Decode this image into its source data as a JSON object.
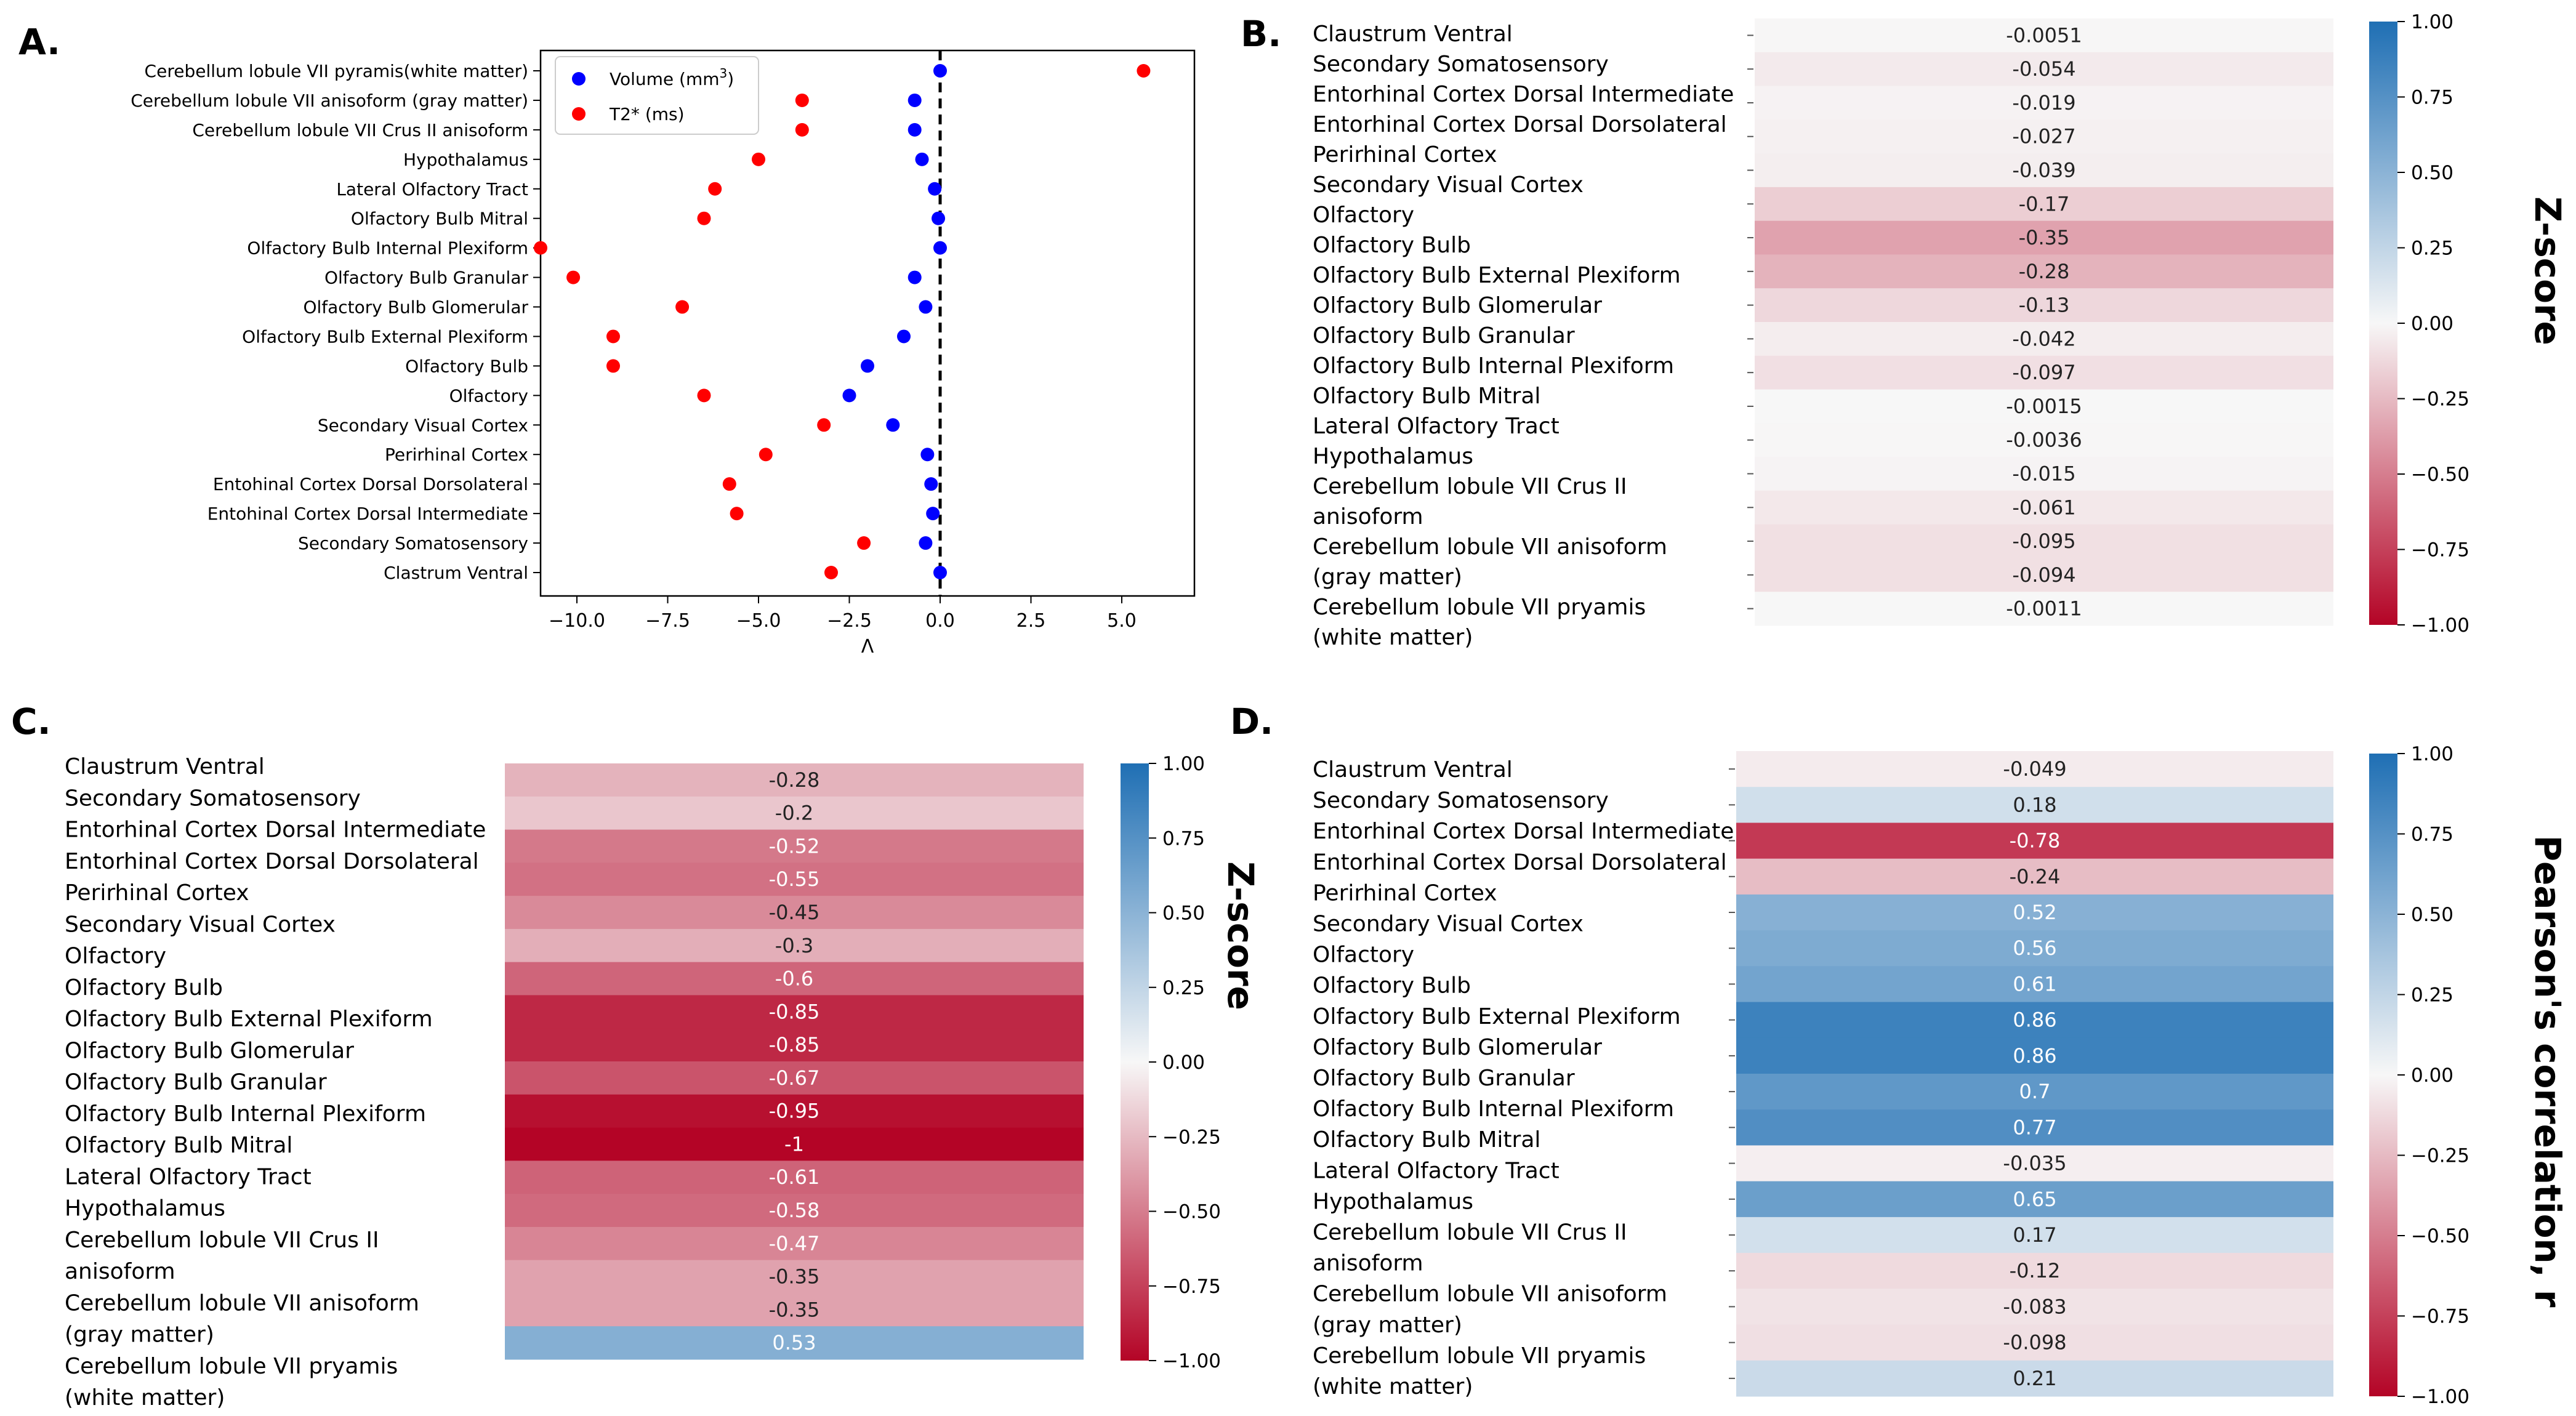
{
  "figure": {
    "type": "multi-panel",
    "panel_count": 4
  },
  "colors": {
    "volume": "#0000ff",
    "t2star": "#ff0000",
    "cmap_neg": "#b40426",
    "cmap_mid": "#f7f7f7",
    "cmap_pos": "#1f6fb4",
    "zero_line": "#000000"
  },
  "chart_data": [
    {
      "panel": "A.",
      "type": "scatter",
      "title": "",
      "xlabel": "Λ",
      "ylabel": "",
      "xlim": [
        -11.0,
        7.0
      ],
      "xticks": [
        -10.0,
        -7.5,
        -5.0,
        -2.5,
        0.0,
        2.5,
        5.0
      ],
      "xtick_labels": [
        "−10.0",
        "−7.5",
        "−5.0",
        "−2.5",
        "0.0",
        "2.5",
        "5.0"
      ],
      "legend_position": "top-right",
      "categories": [
        "Cerebellum lobule VII pyramis(white matter)",
        "Cerebellum lobule VII anisoform (gray matter)",
        "Cerebellum lobule VII Crus II anisoform",
        "Hypothalamus",
        "Lateral Olfactory Tract",
        "Olfactory Bulb Mitral",
        "Olfactory Bulb Internal Plexiform",
        "Olfactory Bulb Granular",
        "Olfactory Bulb Glomerular",
        "Olfactory Bulb External Plexiform",
        "Olfactory Bulb",
        "Olfactory",
        "Secondary Visual Cortex",
        "Perirhinal Cortex",
        "Entohinal Cortex Dorsal Dorsolateral",
        "Entohinal Cortex Dorsal Intermediate",
        "Secondary Somatosensory",
        "Clastrum Ventral"
      ],
      "series": [
        {
          "name": "Volume (mm",
          "name_sup": "3",
          "name_suffix": ")",
          "color": "#0000ff",
          "values": [
            0.0,
            -0.7,
            -0.7,
            -0.5,
            -0.15,
            -0.05,
            0.0,
            -0.7,
            -0.4,
            -1.0,
            -2.0,
            -2.5,
            -1.3,
            -0.35,
            -0.25,
            -0.2,
            -0.4,
            0.0
          ]
        },
        {
          "name": "T2* (ms)",
          "color": "#ff0000",
          "values": [
            5.6,
            -3.8,
            -3.8,
            -5.0,
            -6.2,
            -6.5,
            -11.0,
            -10.1,
            -7.1,
            -9.0,
            -9.0,
            -6.5,
            -3.2,
            -4.8,
            -5.8,
            -5.6,
            -2.1,
            -3.0
          ]
        }
      ],
      "reference_line": {
        "x": 0.0,
        "style": "dashed"
      }
    },
    {
      "panel": "B.",
      "type": "heatmap",
      "colorbar_label": "Z-score",
      "vmin": -1.0,
      "vmax": 1.0,
      "colorbar_ticks": [
        1.0,
        0.75,
        0.5,
        0.25,
        0.0,
        -0.25,
        -0.5,
        -0.75,
        -1.0
      ],
      "colorbar_tick_labels": [
        "1.00",
        "0.75",
        "0.50",
        "0.25",
        "0.00",
        "−0.25",
        "−0.50",
        "−0.75",
        "−1.00"
      ],
      "row_labels": [
        "Claustrum Ventral",
        "Secondary Somatosensory",
        "Entorhinal Cortex Dorsal Intermediate",
        "Entorhinal Cortex Dorsal Dorsolateral",
        "Perirhinal Cortex",
        "Secondary Visual Cortex",
        "Olfactory",
        "Olfactory Bulb",
        "Olfactory Bulb External Plexiform",
        "Olfactory Bulb Glomerular",
        "Olfactory Bulb Granular",
        "Olfactory Bulb Internal Plexiform",
        "Olfactory Bulb Mitral",
        "Lateral Olfactory Tract",
        "Hypothalamus",
        "Cerebellum lobule VII Crus II",
        "anisoform",
        "Cerebellum lobule VII anisoform",
        "(gray matter)",
        "Cerebellum lobule VII pryamis",
        "(white matter)"
      ],
      "values": [
        -0.0051,
        -0.054,
        -0.019,
        -0.027,
        -0.039,
        -0.17,
        -0.35,
        -0.28,
        -0.13,
        -0.042,
        -0.097,
        -0.0015,
        -0.0036,
        -0.015,
        -0.061,
        -0.095,
        -0.094,
        -0.0011
      ],
      "value_labels": [
        "-0.0051",
        "-0.054",
        "-0.019",
        "-0.027",
        "-0.039",
        "-0.17",
        "-0.35",
        "-0.28",
        "-0.13",
        "-0.042",
        "-0.097",
        "-0.0015",
        "-0.0036",
        "-0.015",
        "-0.061",
        "-0.095",
        "-0.094",
        "-0.0011"
      ]
    },
    {
      "panel": "C.",
      "type": "heatmap",
      "colorbar_label": "Z-score",
      "vmin": -1.0,
      "vmax": 1.0,
      "colorbar_ticks": [
        1.0,
        0.75,
        0.5,
        0.25,
        0.0,
        -0.25,
        -0.5,
        -0.75,
        -1.0
      ],
      "colorbar_tick_labels": [
        "1.00",
        "0.75",
        "0.50",
        "0.25",
        "0.00",
        "−0.25",
        "−0.50",
        "−0.75",
        "−1.00"
      ],
      "row_labels": [
        "Claustrum Ventral",
        "Secondary Somatosensory",
        "Entorhinal Cortex Dorsal Intermediate",
        "Entorhinal Cortex Dorsal Dorsolateral",
        "Perirhinal Cortex",
        "Secondary Visual Cortex",
        "Olfactory",
        "Olfactory Bulb",
        "Olfactory Bulb External Plexiform",
        "Olfactory Bulb Glomerular",
        "Olfactory Bulb Granular",
        "Olfactory Bulb Internal Plexiform",
        "Olfactory Bulb Mitral",
        "Lateral Olfactory Tract",
        "Hypothalamus",
        "Cerebellum lobule VII Crus II",
        "anisoform",
        "Cerebellum lobule VII anisoform",
        "(gray matter)",
        "Cerebellum lobule VII pryamis",
        "(white matter)"
      ],
      "values": [
        -0.28,
        -0.2,
        -0.52,
        -0.55,
        -0.45,
        -0.3,
        -0.6,
        -0.85,
        -0.85,
        -0.67,
        -0.95,
        -1.0,
        -0.61,
        -0.58,
        -0.47,
        -0.35,
        -0.35,
        0.53
      ],
      "value_labels": [
        "-0.28",
        "-0.2",
        "-0.52",
        "-0.55",
        "-0.45",
        "-0.3",
        "-0.6",
        "-0.85",
        "-0.85",
        "-0.67",
        "-0.95",
        "-1",
        "-0.61",
        "-0.58",
        "-0.47",
        "-0.35",
        "-0.35",
        "0.53"
      ]
    },
    {
      "panel": "D.",
      "type": "heatmap",
      "colorbar_label": "Pearson's correlation, r",
      "vmin": -1.0,
      "vmax": 1.0,
      "colorbar_ticks": [
        1.0,
        0.75,
        0.5,
        0.25,
        0.0,
        -0.25,
        -0.5,
        -0.75,
        -1.0
      ],
      "colorbar_tick_labels": [
        "1.00",
        "0.75",
        "0.50",
        "0.25",
        "0.00",
        "−0.25",
        "−0.50",
        "−0.75",
        "−1.00"
      ],
      "row_labels": [
        "Claustrum Ventral",
        "Secondary Somatosensory",
        "Entorhinal Cortex Dorsal Intermediate",
        "Entorhinal Cortex Dorsal Dorsolateral",
        "Perirhinal Cortex",
        "Secondary Visual Cortex",
        "Olfactory",
        "Olfactory Bulb",
        "Olfactory Bulb External Plexiform",
        "Olfactory Bulb Glomerular",
        "Olfactory Bulb Granular",
        "Olfactory Bulb Internal Plexiform",
        "Olfactory Bulb Mitral",
        "Lateral Olfactory Tract",
        "Hypothalamus",
        "Cerebellum lobule VII Crus II",
        "anisoform",
        "Cerebellum lobule VII anisoform",
        "(gray matter)",
        "Cerebellum lobule VII pryamis",
        "(white matter)"
      ],
      "values": [
        -0.049,
        0.18,
        -0.78,
        -0.24,
        0.52,
        0.56,
        0.61,
        0.86,
        0.86,
        0.7,
        0.77,
        -0.035,
        0.65,
        0.17,
        -0.12,
        -0.083,
        -0.098,
        0.21
      ],
      "value_labels": [
        "-0.049",
        "0.18",
        "-0.78",
        "-0.24",
        "0.52",
        "0.56",
        "0.61",
        "0.86",
        "0.86",
        "0.7",
        "0.77",
        "-0.035",
        "0.65",
        "0.17",
        "-0.12",
        "-0.083",
        "-0.098",
        "0.21"
      ]
    }
  ]
}
